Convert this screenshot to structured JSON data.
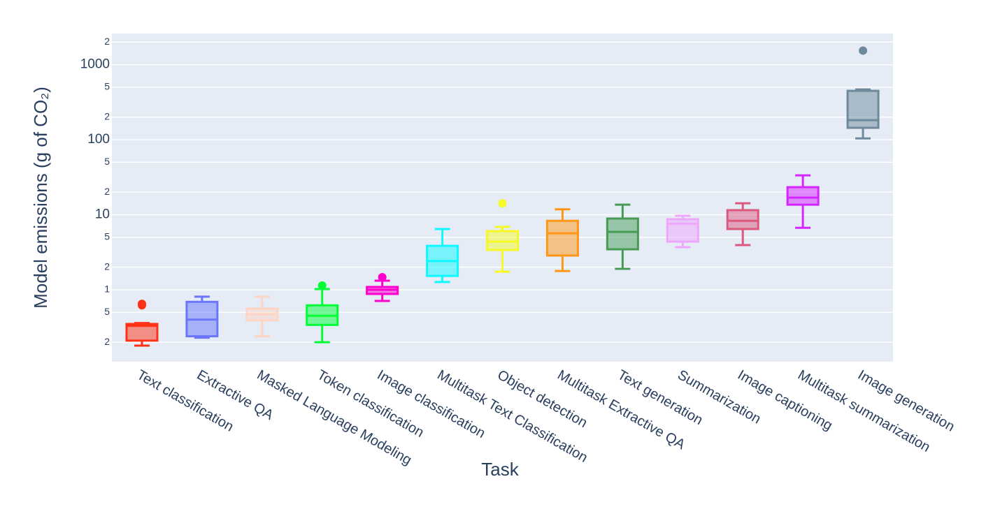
{
  "chart_data": {
    "type": "box",
    "x_label": "Task",
    "y_label": "Model emissions (g of CO₂)",
    "log_y": true,
    "grid": true,
    "ylim": [
      0.11,
      2600
    ],
    "yticks": [
      {
        "value": 2000,
        "label": "2"
      },
      1000,
      {
        "value": 500,
        "label": "5"
      },
      {
        "value": 200,
        "label": "2"
      },
      100,
      {
        "value": 50,
        "label": "5"
      },
      {
        "value": 20,
        "label": "2"
      },
      10,
      5,
      2,
      1,
      {
        "value": 0.5,
        "label": "5"
      },
      {
        "value": 0.2,
        "label": "2"
      }
    ],
    "categories": [
      "Text classification",
      "Extractive QA",
      "Masked Language Modeling",
      "Token classification",
      "Image classification",
      "Multitask Text Classification",
      "Object detection",
      "Multitask Extractive QA",
      "Text generation",
      "Summarization",
      "Image captioning",
      "Multitask summarization",
      "Image generation"
    ],
    "boxes": [
      {
        "color": "#FD3216",
        "min": 0.18,
        "q1": 0.21,
        "median": 0.33,
        "q3": 0.35,
        "max": 0.36,
        "outliers": [
          0.62,
          0.65
        ]
      },
      {
        "color": "#6A76FC",
        "min": 0.23,
        "q1": 0.24,
        "median": 0.4,
        "q3": 0.69,
        "max": 0.81,
        "outliers": []
      },
      {
        "color": "#FED4C4",
        "min": 0.24,
        "q1": 0.39,
        "median": 0.47,
        "q3": 0.56,
        "max": 0.81,
        "outliers": []
      },
      {
        "color": "#00FE35",
        "min": 0.2,
        "q1": 0.34,
        "median": 0.45,
        "q3": 0.62,
        "max": 1.02,
        "outliers": [
          1.14
        ]
      },
      {
        "color": "#FE00CE",
        "min": 0.71,
        "q1": 0.88,
        "median": 1.0,
        "q3": 1.09,
        "max": 1.32,
        "outliers": [
          1.47
        ]
      },
      {
        "color": "#0DF9FF",
        "min": 1.27,
        "q1": 1.53,
        "median": 2.41,
        "q3": 3.85,
        "max": 6.45,
        "outliers": []
      },
      {
        "color": "#F6F926",
        "min": 1.74,
        "q1": 3.39,
        "median": 4.38,
        "q3": 6.05,
        "max": 6.9,
        "outliers": [
          14.2
        ]
      },
      {
        "color": "#FF9616",
        "min": 1.78,
        "q1": 2.86,
        "median": 5.66,
        "q3": 8.3,
        "max": 11.8,
        "outliers": []
      },
      {
        "color": "#479B55",
        "min": 1.9,
        "q1": 3.46,
        "median": 5.9,
        "q3": 8.9,
        "max": 13.6,
        "outliers": []
      },
      {
        "color": "#EEA6FB",
        "min": 3.69,
        "q1": 4.38,
        "median": 7.6,
        "q3": 8.7,
        "max": 9.7,
        "outliers": []
      },
      {
        "color": "#DC587D",
        "min": 3.94,
        "q1": 6.45,
        "median": 8.3,
        "q3": 11.5,
        "max": 14.2,
        "outliers": []
      },
      {
        "color": "#D626FF",
        "min": 6.7,
        "q1": 13.6,
        "median": 16.9,
        "q3": 23.3,
        "max": 33.5,
        "outliers": []
      },
      {
        "color": "#6E899C",
        "min": 104,
        "q1": 144,
        "median": 182,
        "q3": 448,
        "max": 467,
        "outliers": [
          1540
        ]
      }
    ]
  }
}
